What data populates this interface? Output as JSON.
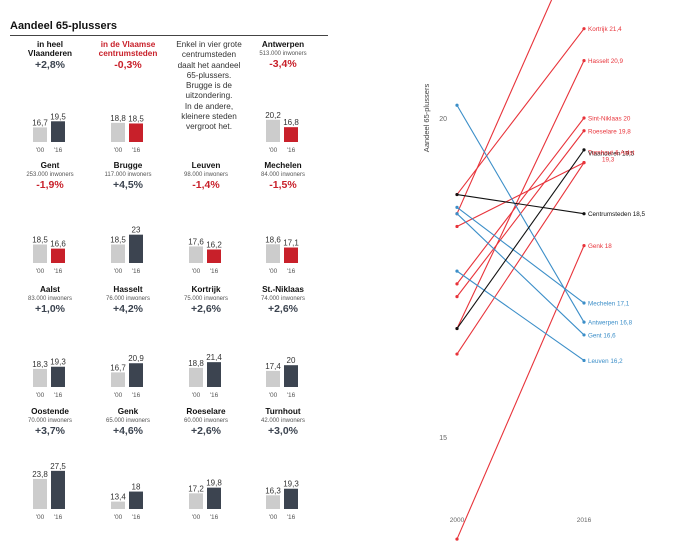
{
  "left_panel": {
    "title": "Aandeel 65-plussers",
    "note_lines": [
      "Enkel in vier grote",
      "centrumsteden",
      "daalt het aandeel",
      "65-plussers.",
      "Brugge is de",
      "uitzondering.",
      "In de andere,",
      "kleinere steden",
      "vergroot het."
    ],
    "colors": {
      "bar_2000": "#cccccc",
      "bar_2016": "#3c4450",
      "bar_2016_decline": "#c8202a",
      "change_up": "#3c4450",
      "change_down": "#c8202a"
    }
  },
  "chart_data": [
    {
      "type": "bar",
      "title": "Aandeel 65-plussers",
      "categories": [
        "'00",
        "'16"
      ],
      "panels": [
        {
          "name": "in heel Vlaanderen",
          "name_lines": [
            "in heel",
            "Vlaanderen"
          ],
          "subtitle": "",
          "change": "+2,8%",
          "values": [
            16.7,
            19.5
          ],
          "labels": [
            "16,7",
            "19,5"
          ],
          "trend": "up"
        },
        {
          "name": "in de Vlaamse centrumsteden",
          "name_lines": [
            "in de Vlaamse",
            "centrumsteden"
          ],
          "subtitle": "",
          "change": "-0,3%",
          "values": [
            18.8,
            18.5
          ],
          "labels": [
            "18,8",
            "18,5"
          ],
          "trend": "down",
          "highlight": true
        },
        {
          "name": "Antwerpen",
          "name_lines": [
            "Antwerpen"
          ],
          "subtitle": "513.000 inwoners",
          "change": "-3,4%",
          "values": [
            20.2,
            16.8
          ],
          "labels": [
            "20,2",
            "16,8"
          ],
          "trend": "down"
        },
        {
          "name": "Gent",
          "name_lines": [
            "Gent"
          ],
          "subtitle": "253.000 inwoners",
          "change": "-1,9%",
          "values": [
            18.5,
            16.6
          ],
          "labels": [
            "18,5",
            "16,6"
          ],
          "trend": "down"
        },
        {
          "name": "Brugge",
          "name_lines": [
            "Brugge"
          ],
          "subtitle": "117.000 inwoners",
          "change": "+4,5%",
          "values": [
            18.5,
            23.0
          ],
          "labels": [
            "18,5",
            "23"
          ],
          "trend": "up"
        },
        {
          "name": "Leuven",
          "name_lines": [
            "Leuven"
          ],
          "subtitle": "98.000 inwoners",
          "change": "-1,4%",
          "values": [
            17.6,
            16.2
          ],
          "labels": [
            "17,6",
            "16,2"
          ],
          "trend": "down"
        },
        {
          "name": "Mechelen",
          "name_lines": [
            "Mechelen"
          ],
          "subtitle": "84.000 inwoners",
          "change": "-1,5%",
          "values": [
            18.6,
            17.1
          ],
          "labels": [
            "18,6",
            "17,1"
          ],
          "trend": "down"
        },
        {
          "name": "Aalst",
          "name_lines": [
            "Aalst"
          ],
          "subtitle": "83.000 inwoners",
          "change": "+1,0%",
          "values": [
            18.3,
            19.3
          ],
          "labels": [
            "18,3",
            "19,3"
          ],
          "trend": "up"
        },
        {
          "name": "Hasselt",
          "name_lines": [
            "Hasselt"
          ],
          "subtitle": "76.000 inwoners",
          "change": "+4,2%",
          "values": [
            16.7,
            20.9
          ],
          "labels": [
            "16,7",
            "20,9"
          ],
          "trend": "up"
        },
        {
          "name": "Kortrijk",
          "name_lines": [
            "Kortrijk"
          ],
          "subtitle": "75.000 inwoners",
          "change": "+2,6%",
          "values": [
            18.8,
            21.4
          ],
          "labels": [
            "18,8",
            "21,4"
          ],
          "trend": "up"
        },
        {
          "name": "St.-Niklaas",
          "name_lines": [
            "St.-Niklaas"
          ],
          "subtitle": "74.000 inwoners",
          "change": "+2,6%",
          "values": [
            17.4,
            20.0
          ],
          "labels": [
            "17,4",
            "20"
          ],
          "trend": "up"
        },
        {
          "name": "Oostende",
          "name_lines": [
            "Oostende"
          ],
          "subtitle": "70.000 inwoners",
          "change": "+3,7%",
          "values": [
            23.8,
            27.5
          ],
          "labels": [
            "23,8",
            "27,5"
          ],
          "trend": "up"
        },
        {
          "name": "Genk",
          "name_lines": [
            "Genk"
          ],
          "subtitle": "65.000 inwoners",
          "change": "+4,6%",
          "values": [
            13.4,
            18.0
          ],
          "labels": [
            "13,4",
            "18"
          ],
          "trend": "up"
        },
        {
          "name": "Roeselare",
          "name_lines": [
            "Roeselare"
          ],
          "subtitle": "60.000 inwoners",
          "change": "+2,6%",
          "values": [
            17.2,
            19.8
          ],
          "labels": [
            "17,2",
            "19,8"
          ],
          "trend": "up"
        },
        {
          "name": "Turnhout",
          "name_lines": [
            "Turnhout"
          ],
          "subtitle": "42.000 inwoners",
          "change": "+3,0%",
          "values": [
            16.3,
            19.3
          ],
          "labels": [
            "16,3",
            "19,3"
          ],
          "trend": "up"
        }
      ]
    },
    {
      "type": "line",
      "title": "",
      "xlabel": "",
      "ylabel": "Aandeel 65-plussers",
      "x": [
        2000,
        2016
      ],
      "x_tick_labels": [
        "2000",
        "2016"
      ],
      "ylim": [
        13,
        28
      ],
      "y_ticks": [
        15,
        20,
        25
      ],
      "grid": false,
      "colors": {
        "up": "#e8333a",
        "down": "#3b8ec8",
        "reference": "#111111"
      },
      "series": [
        {
          "name": "Oostende",
          "label": "Oostende 27,5",
          "values": [
            23.8,
            27.5
          ],
          "trend": "up"
        },
        {
          "name": "Brugge",
          "label": "Brugge 23",
          "values": [
            18.5,
            23.0
          ],
          "trend": "up"
        },
        {
          "name": "Kortrijk",
          "label": "Kortrijk 21,4",
          "values": [
            18.8,
            21.4
          ],
          "trend": "up"
        },
        {
          "name": "Hasselt",
          "label": "Hasselt 20,9",
          "values": [
            16.7,
            20.9
          ],
          "trend": "up"
        },
        {
          "name": "Sint-Niklaas",
          "label": "Sint-Niklaas 20",
          "values": [
            17.4,
            20.0
          ],
          "trend": "up"
        },
        {
          "name": "Roeselare",
          "label": "Roeselare 19,8",
          "values": [
            17.2,
            19.8
          ],
          "trend": "up"
        },
        {
          "name": "Vlaanderen",
          "label": "Vlaanderen 19,5",
          "values": [
            16.7,
            19.5
          ],
          "trend": "reference"
        },
        {
          "name": "Turnhout",
          "label": "",
          "values": [
            16.3,
            19.3
          ],
          "trend": "up"
        },
        {
          "name": "Aalst",
          "label": "",
          "values": [
            18.3,
            19.3
          ],
          "trend": "up"
        },
        {
          "name": "Centrumsteden",
          "label": "Centrumsteden 18,5",
          "values": [
            18.8,
            18.5
          ],
          "trend": "reference"
        },
        {
          "name": "Genk",
          "label": "Genk 18",
          "values": [
            13.4,
            18.0
          ],
          "trend": "up"
        },
        {
          "name": "Mechelen",
          "label": "Mechelen 17,1",
          "values": [
            18.6,
            17.1
          ],
          "trend": "down"
        },
        {
          "name": "Antwerpen",
          "label": "Antwerpen 16,8",
          "values": [
            20.2,
            16.8
          ],
          "trend": "down"
        },
        {
          "name": "Gent",
          "label": "Gent 16,6",
          "values": [
            18.5,
            16.6
          ],
          "trend": "down"
        },
        {
          "name": "Leuven",
          "label": "Leuven 16,2",
          "values": [
            17.6,
            16.2
          ],
          "trend": "down"
        }
      ],
      "combined_labels": [
        {
          "text_lines": [
            "Turnhout & Aalst",
            "19,3"
          ],
          "value": 19.3
        }
      ]
    }
  ]
}
